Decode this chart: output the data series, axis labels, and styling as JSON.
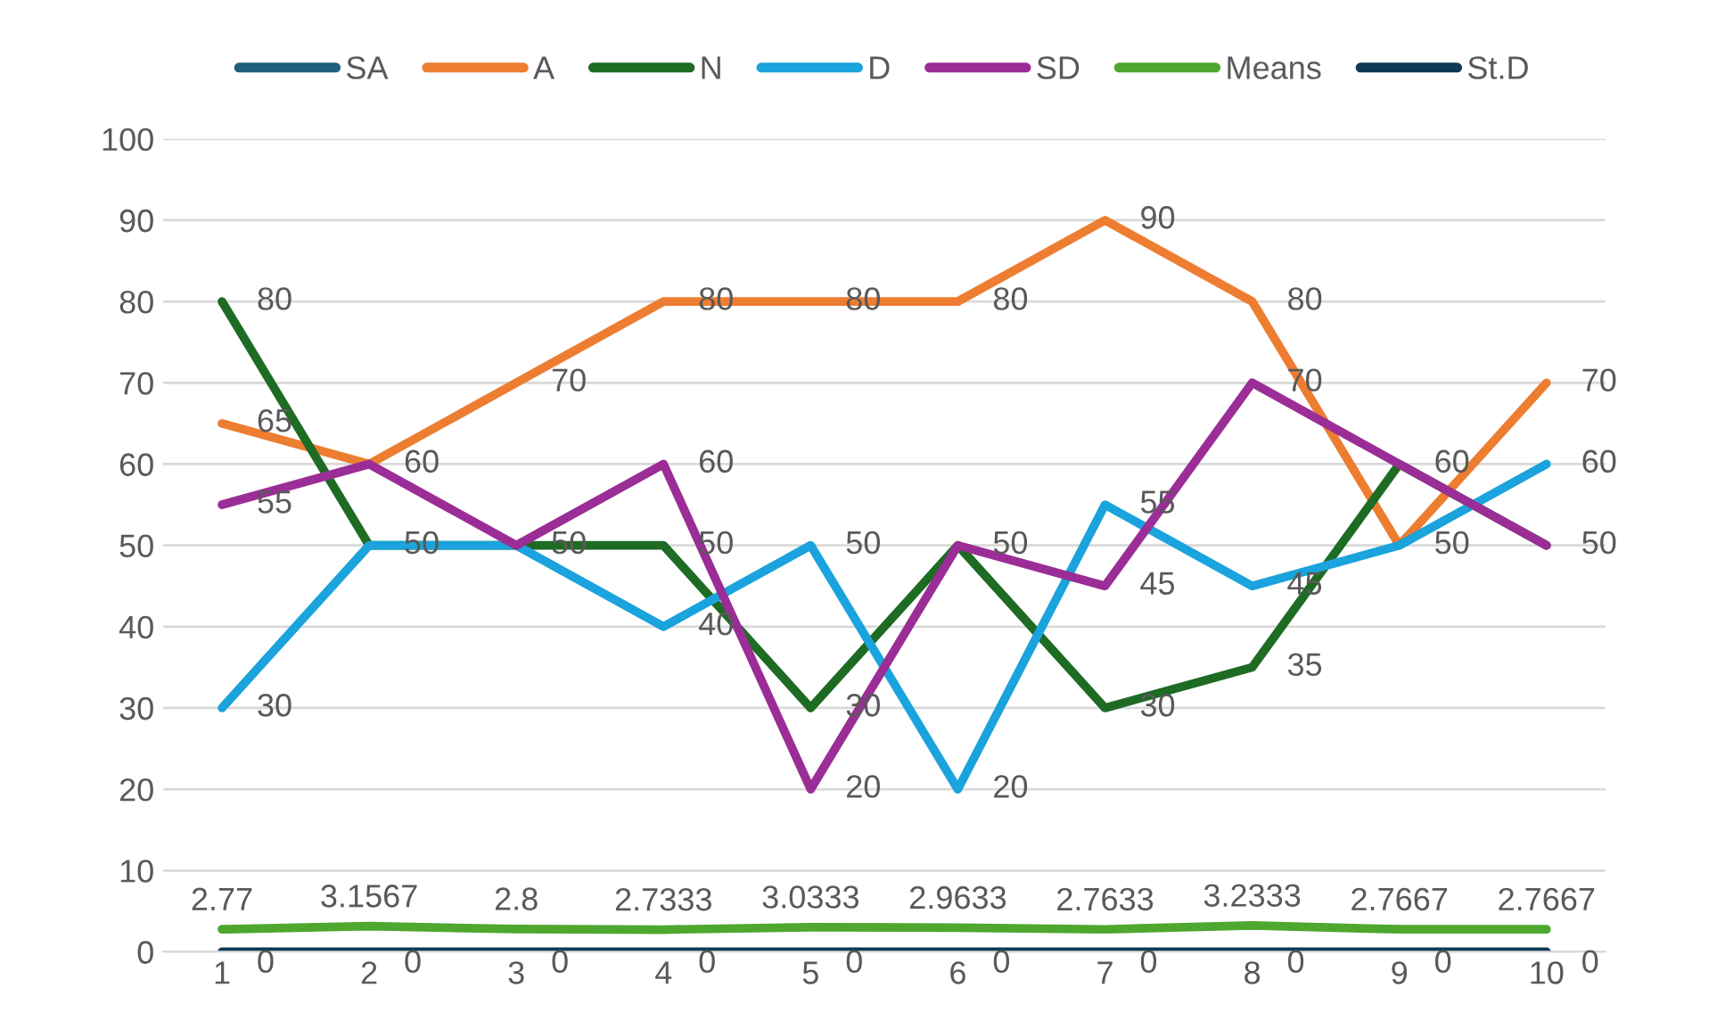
{
  "chart_data": {
    "type": "line",
    "categories": [
      "1",
      "2",
      "3",
      "4",
      "5",
      "6",
      "7",
      "8",
      "9",
      "10"
    ],
    "series": [
      {
        "name": "SA",
        "color": "#1f5f7f",
        "values": [
          null,
          null,
          null,
          null,
          null,
          null,
          null,
          null,
          null,
          null
        ]
      },
      {
        "name": "A",
        "color": "#ed7d31",
        "values": [
          65,
          60,
          70,
          80,
          80,
          80,
          90,
          80,
          50,
          70
        ]
      },
      {
        "name": "N",
        "color": "#1e6b24",
        "values": [
          80,
          50,
          50,
          50,
          30,
          50,
          30,
          35,
          60,
          50
        ]
      },
      {
        "name": "D",
        "color": "#1aa3dc",
        "values": [
          30,
          50,
          50,
          40,
          50,
          20,
          55,
          45,
          50,
          60
        ],
        "value_labels": [
          "30",
          null,
          null,
          "40",
          "50",
          "20",
          "55",
          "45",
          null,
          "60"
        ]
      },
      {
        "name": "SD",
        "color": "#9b2d96",
        "values": [
          55,
          60,
          50,
          60,
          20,
          50,
          45,
          70,
          60,
          50
        ],
        "value_labels": [
          "55",
          null,
          null,
          "60",
          "20",
          null,
          "45",
          "70",
          null,
          null
        ]
      },
      {
        "name": "Means",
        "color": "#4ea72e",
        "values": [
          2.77,
          3.1567,
          2.8,
          2.7333,
          3.0333,
          2.9633,
          2.7633,
          3.2333,
          2.7667,
          2.7667
        ]
      },
      {
        "name": "St.D",
        "color": "#0e3a55",
        "values": [
          0,
          0,
          0,
          0,
          0,
          0,
          0,
          0,
          0,
          0
        ]
      }
    ],
    "ylim": [
      0,
      100
    ],
    "yticks": [
      0,
      10,
      20,
      30,
      40,
      50,
      60,
      70,
      80,
      90,
      100
    ],
    "grid": "y",
    "legend": "top",
    "marker": "none",
    "line_style": "solid",
    "data_labels": true
  }
}
